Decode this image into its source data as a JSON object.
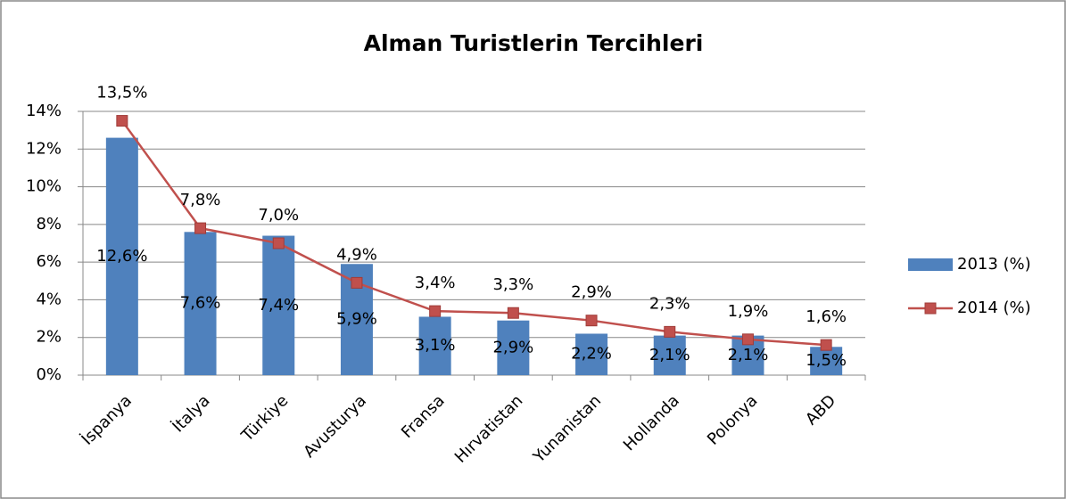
{
  "chart_data": {
    "type": "bar-line",
    "title": "Alman Turistlerin Tercihleri",
    "categories": [
      "İspanya",
      "İtalya",
      "Türkiye",
      "Avusturya",
      "Fransa",
      "Hırvatistan",
      "Yunanistan",
      "Hollanda",
      "Polonya",
      "ABD"
    ],
    "series": [
      {
        "name": "2013 (%)",
        "type": "bar",
        "color": "#4f81bd",
        "values": [
          12.6,
          7.6,
          7.4,
          5.9,
          3.1,
          2.9,
          2.2,
          2.1,
          2.1,
          1.5
        ],
        "value_labels": [
          "12,6%",
          "7,6%",
          "7,4%",
          "5,9%",
          "3,1%",
          "2,9%",
          "2,2%",
          "2,1%",
          "2,1%",
          "1,5%"
        ]
      },
      {
        "name": "2014 (%)",
        "type": "line",
        "color": "#c0504d",
        "values": [
          13.5,
          7.8,
          7.0,
          4.9,
          3.4,
          3.3,
          2.9,
          2.3,
          1.9,
          1.6
        ],
        "value_labels": [
          "13,5%",
          "7,8%",
          "7,0%",
          "4,9%",
          "3,4%",
          "3,3%",
          "2,9%",
          "2,3%",
          "1,9%",
          "1,6%"
        ]
      }
    ],
    "ylim": [
      0,
      14
    ],
    "yticks": [
      {
        "value": 0,
        "label": "0%"
      },
      {
        "value": 2,
        "label": "2%"
      },
      {
        "value": 4,
        "label": "4%"
      },
      {
        "value": 6,
        "label": "6%"
      },
      {
        "value": 8,
        "label": "8%"
      },
      {
        "value": 10,
        "label": "10%"
      },
      {
        "value": 12,
        "label": "12%"
      },
      {
        "value": 14,
        "label": "14%"
      }
    ],
    "grid": true,
    "legend": "right"
  }
}
